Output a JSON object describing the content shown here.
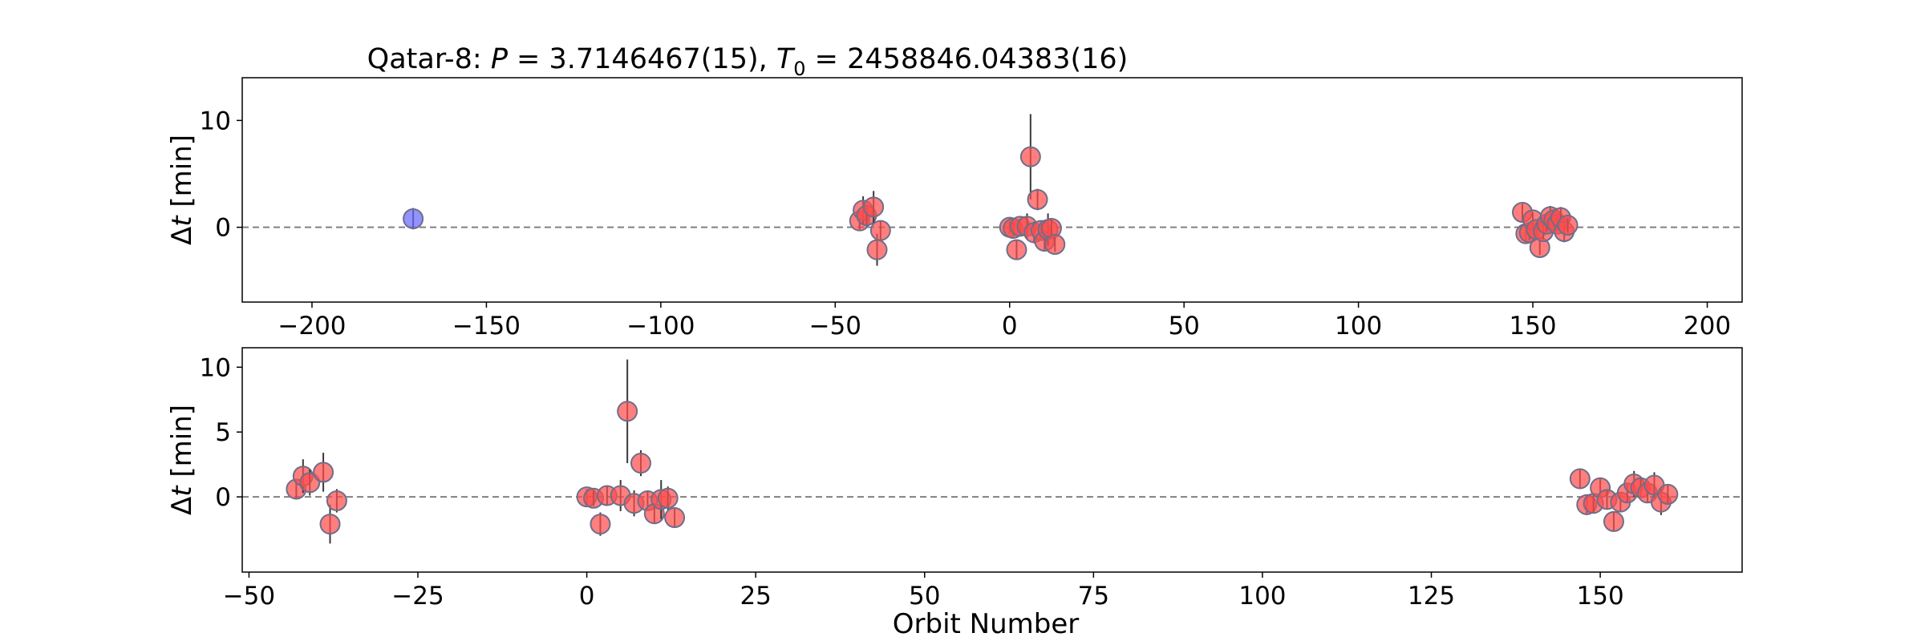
{
  "figure": {
    "title_prefix": "Qatar-8: ",
    "title_P_symbol": "P",
    "title_P_value": " = 3.7146467(15), ",
    "title_T_symbol": "T",
    "title_T_subscript": "0",
    "title_T_value": " = 2458846.04383(16)"
  },
  "chart_data": [
    {
      "type": "scatter",
      "title": "Qatar-8: P = 3.7146467(15), T0 = 2458846.04383(16)",
      "xlabel": "",
      "ylabel": "Δt [min]",
      "ylabel_parts": {
        "delta": "Δ",
        "var": "t",
        "unit": " [min]"
      },
      "xlim": [
        -220,
        210
      ],
      "ylim": [
        -7,
        14
      ],
      "x_ticks": [
        -200,
        -150,
        -100,
        -50,
        0,
        50,
        100,
        150,
        200
      ],
      "x_tick_labels": [
        "−200",
        "−150",
        "−100",
        "−50",
        "0",
        "50",
        "100",
        "150",
        "200"
      ],
      "y_ticks": [
        0,
        10
      ],
      "y_tick_labels": [
        "0",
        "10"
      ],
      "reference_line": {
        "y": 0,
        "style": "dashed",
        "color": "#808080"
      },
      "grid": false,
      "series": [
        {
          "color": "#6a6aff",
          "points": [
            {
              "x": -171,
              "y": 0.8,
              "err": 1.0
            }
          ]
        },
        {
          "color": "#ff4d4d",
          "points": [
            {
              "x": -43,
              "y": 0.6,
              "err": 0.8
            },
            {
              "x": -42,
              "y": 1.6,
              "err": 1.3
            },
            {
              "x": -41,
              "y": 1.1,
              "err": 1.0
            },
            {
              "x": -39,
              "y": 1.9,
              "err": 1.5
            },
            {
              "x": -38,
              "y": -2.1,
              "err": 1.5
            },
            {
              "x": -37,
              "y": -0.3,
              "err": 0.9
            },
            {
              "x": 0,
              "y": 0.0,
              "err": 0.6
            },
            {
              "x": 1,
              "y": -0.1,
              "err": 0.6
            },
            {
              "x": 2,
              "y": -2.1,
              "err": 0.9
            },
            {
              "x": 3,
              "y": 0.1,
              "err": 0.7
            },
            {
              "x": 5,
              "y": 0.1,
              "err": 1.2
            },
            {
              "x": 6,
              "y": 6.6,
              "err": 4.0
            },
            {
              "x": 7,
              "y": -0.5,
              "err": 1.0
            },
            {
              "x": 8,
              "y": 2.6,
              "err": 1.0
            },
            {
              "x": 9,
              "y": -0.3,
              "err": 0.7
            },
            {
              "x": 10,
              "y": -1.3,
              "err": 0.8
            },
            {
              "x": 11,
              "y": -0.2,
              "err": 1.5
            },
            {
              "x": 12,
              "y": -0.1,
              "err": 0.9
            },
            {
              "x": 13,
              "y": -1.6,
              "err": 0.7
            },
            {
              "x": 147,
              "y": 1.4,
              "err": 0.8
            },
            {
              "x": 148,
              "y": -0.6,
              "err": 0.8
            },
            {
              "x": 149,
              "y": -0.5,
              "err": 0.7
            },
            {
              "x": 150,
              "y": 0.7,
              "err": 0.7
            },
            {
              "x": 151,
              "y": -0.2,
              "err": 0.7
            },
            {
              "x": 152,
              "y": -1.9,
              "err": 0.7
            },
            {
              "x": 153,
              "y": -0.4,
              "err": 0.7
            },
            {
              "x": 154,
              "y": 0.3,
              "err": 0.7
            },
            {
              "x": 155,
              "y": 1.0,
              "err": 1.0
            },
            {
              "x": 156,
              "y": 0.7,
              "err": 0.7
            },
            {
              "x": 157,
              "y": 0.3,
              "err": 0.7
            },
            {
              "x": 158,
              "y": 0.9,
              "err": 1.0
            },
            {
              "x": 159,
              "y": -0.4,
              "err": 1.0
            },
            {
              "x": 160,
              "y": 0.2,
              "err": 0.7
            }
          ]
        }
      ]
    },
    {
      "type": "scatter",
      "title": "",
      "xlabel": "Orbit Number",
      "ylabel": "Δt [min]",
      "ylabel_parts": {
        "delta": "Δ",
        "var": "t",
        "unit": " [min]"
      },
      "xlim": [
        -51,
        171
      ],
      "ylim": [
        -5.8,
        11.5
      ],
      "x_ticks": [
        -50,
        -25,
        0,
        25,
        50,
        75,
        100,
        125,
        150
      ],
      "x_tick_labels": [
        "−50",
        "−25",
        "0",
        "25",
        "50",
        "75",
        "100",
        "125",
        "150"
      ],
      "y_ticks": [
        0,
        5,
        10
      ],
      "y_tick_labels": [
        "0",
        "5",
        "10"
      ],
      "reference_line": {
        "y": 0,
        "style": "dashed",
        "color": "#808080"
      },
      "grid": false,
      "series": [
        {
          "color": "#ff4d4d",
          "points": [
            {
              "x": -43,
              "y": 0.6,
              "err": 0.8
            },
            {
              "x": -42,
              "y": 1.6,
              "err": 1.3
            },
            {
              "x": -41,
              "y": 1.1,
              "err": 1.0
            },
            {
              "x": -39,
              "y": 1.9,
              "err": 1.5
            },
            {
              "x": -38,
              "y": -2.1,
              "err": 1.5
            },
            {
              "x": -37,
              "y": -0.3,
              "err": 0.9
            },
            {
              "x": 0,
              "y": 0.0,
              "err": 0.6
            },
            {
              "x": 1,
              "y": -0.1,
              "err": 0.6
            },
            {
              "x": 2,
              "y": -2.1,
              "err": 0.9
            },
            {
              "x": 3,
              "y": 0.1,
              "err": 0.7
            },
            {
              "x": 5,
              "y": 0.1,
              "err": 1.2
            },
            {
              "x": 6,
              "y": 6.6,
              "err": 4.0
            },
            {
              "x": 7,
              "y": -0.5,
              "err": 1.0
            },
            {
              "x": 8,
              "y": 2.6,
              "err": 1.0
            },
            {
              "x": 9,
              "y": -0.3,
              "err": 0.7
            },
            {
              "x": 10,
              "y": -1.3,
              "err": 0.8
            },
            {
              "x": 11,
              "y": -0.2,
              "err": 1.5
            },
            {
              "x": 12,
              "y": -0.1,
              "err": 0.9
            },
            {
              "x": 13,
              "y": -1.6,
              "err": 0.7
            },
            {
              "x": 147,
              "y": 1.4,
              "err": 0.8
            },
            {
              "x": 148,
              "y": -0.6,
              "err": 0.8
            },
            {
              "x": 149,
              "y": -0.5,
              "err": 0.7
            },
            {
              "x": 150,
              "y": 0.7,
              "err": 0.7
            },
            {
              "x": 151,
              "y": -0.2,
              "err": 0.7
            },
            {
              "x": 152,
              "y": -1.9,
              "err": 0.7
            },
            {
              "x": 153,
              "y": -0.4,
              "err": 0.7
            },
            {
              "x": 154,
              "y": 0.3,
              "err": 0.7
            },
            {
              "x": 155,
              "y": 1.0,
              "err": 1.0
            },
            {
              "x": 156,
              "y": 0.7,
              "err": 0.7
            },
            {
              "x": 157,
              "y": 0.3,
              "err": 0.7
            },
            {
              "x": 158,
              "y": 0.9,
              "err": 1.0
            },
            {
              "x": 159,
              "y": -0.4,
              "err": 1.0
            },
            {
              "x": 160,
              "y": 0.2,
              "err": 0.7
            }
          ]
        }
      ]
    }
  ]
}
